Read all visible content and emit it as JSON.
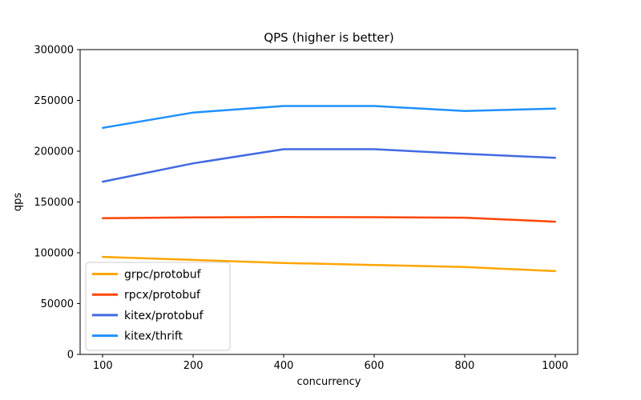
{
  "chart_data": {
    "type": "line",
    "title": "QPS (higher is better)",
    "xlabel": "concurrency",
    "ylabel": "qps",
    "categories": [
      "100",
      "200",
      "400",
      "600",
      "800",
      "1000"
    ],
    "x_axis_note": "categorical spacing (equal intervals between points)",
    "series": [
      {
        "name": "grpc/protobuf",
        "color": "#FFA500",
        "values": [
          96000,
          93000,
          90000,
          88000,
          86000,
          82000
        ]
      },
      {
        "name": "rpcx/protobuf",
        "color": "#FF4500",
        "values": [
          134000,
          134800,
          135200,
          135000,
          134600,
          130600
        ]
      },
      {
        "name": "kitex/protobuf",
        "color": "#4169E1",
        "values": [
          170000,
          188000,
          202000,
          202000,
          197500,
          193500
        ]
      },
      {
        "name": "kitex/thrift",
        "color": "#1E90FF",
        "values": [
          223000,
          238000,
          244500,
          244500,
          239500,
          242000
        ]
      }
    ],
    "ylim": [
      0,
      300000
    ],
    "y_ticks": [
      0,
      50000,
      100000,
      150000,
      200000,
      250000,
      300000
    ],
    "grid": false,
    "legend_position": "lower left",
    "line_width": 2.5,
    "spine_color": "#000000",
    "legend_border_color": "#cccccc",
    "background_color": "#ffffff"
  }
}
